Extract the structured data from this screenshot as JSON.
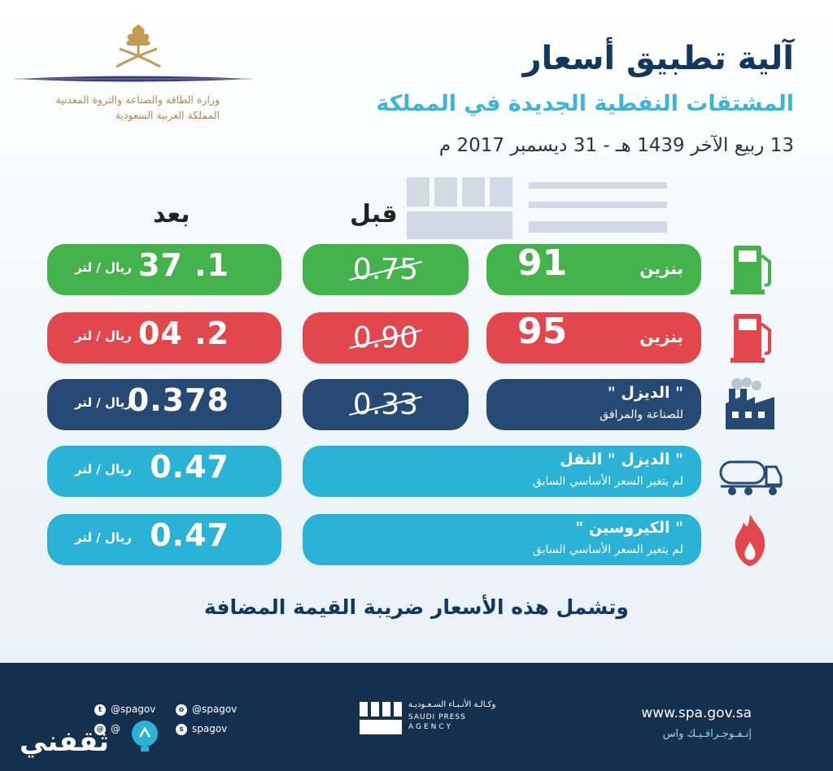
{
  "header": {
    "title": "آلية تطبيق أسعار",
    "subtitle": "المشتقات النفطية الجديدة في المملكة",
    "date": "13 ربيع الآخر 1439 هـ - 31 ديسمبر 2017 م",
    "ministry_line1": "وزارة الطاقة والصناعة والثروة المعدنية",
    "ministry_line2": "المملكة العربية السعودية"
  },
  "columns": {
    "before": "قبل",
    "after": "بعد"
  },
  "unit": "ريال / لتر",
  "rows": [
    {
      "label": "بنزين",
      "grade": "91",
      "before": "0.75",
      "after": "1. 37",
      "color": "#44b34b",
      "icon": "fuel-pump-green-icon"
    },
    {
      "label": "بنزين",
      "grade": "95",
      "before": "0.90",
      "after": "2. 04",
      "color": "#e2474d",
      "icon": "fuel-pump-red-icon"
    },
    {
      "label": "\" الديزل \"",
      "sub": "للصناعة والمرافق",
      "before": "0.33",
      "after": "0.378",
      "color": "#274a75",
      "icon": "factory-icon"
    },
    {
      "label": "\" الديزل \" النقل",
      "sub": "لم يتغير السعر الأساسي السابق",
      "after": "0.47",
      "color": "#2ab3d6",
      "icon": "tanker-truck-icon"
    },
    {
      "label": "\" الكيروسين \"",
      "sub": "لم يتغير السعر الأساسي السابق",
      "after": "0.47",
      "color": "#2ab3d6",
      "icon": "flame-drop-icon"
    }
  ],
  "vat_note": "وتشمل هذه الأسعار ضريبة القيمة المضافة",
  "footer": {
    "url": "www.spa.gov.sa",
    "infographic": "إنـفـوجـرافـيـك واس",
    "agency_ar": "وكـالـة الأنـبـاء السـعـوديـة",
    "agency_en1": "SAUDI PRESS",
    "agency_en2": "AGENCY",
    "social": [
      "@spagov",
      "@spagov",
      "spagov",
      "@"
    ],
    "brand": "ثقفني"
  }
}
